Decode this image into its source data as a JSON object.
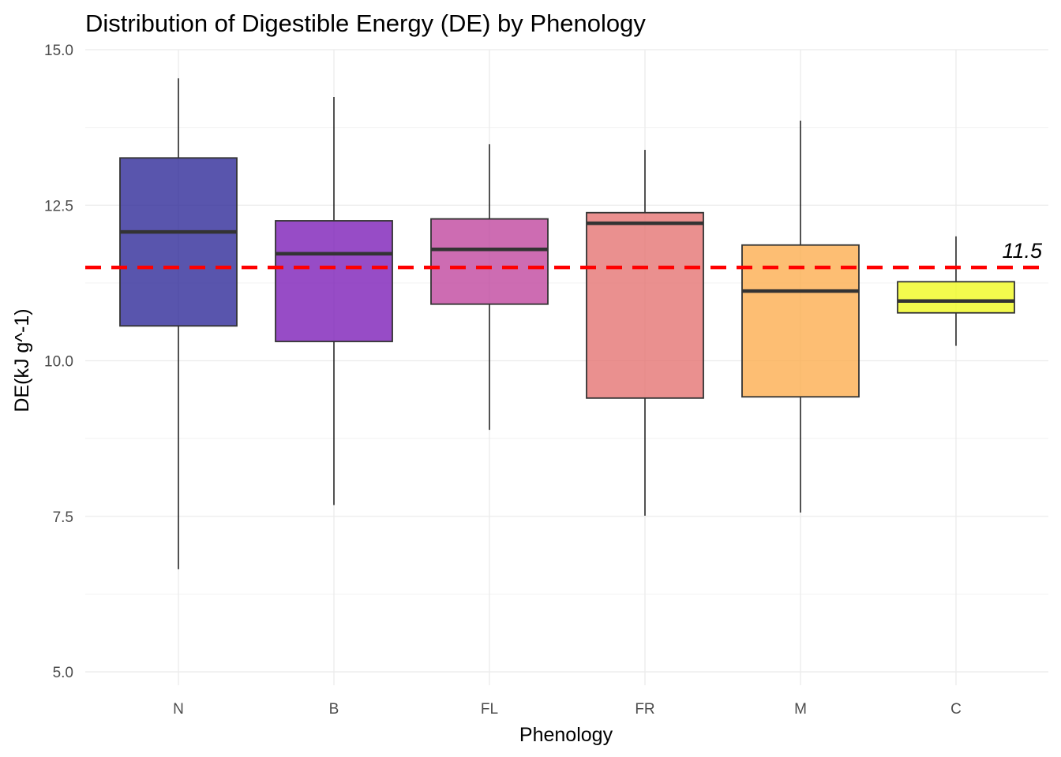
{
  "chart_data": {
    "type": "boxplot",
    "title": "Distribution of Digestible Energy (DE) by Phenology",
    "xlabel": "Phenology",
    "ylabel": "DE(kJ g^-1)",
    "ylim": [
      4.85,
      15.0
    ],
    "yticks": [
      "5.0",
      "7.5",
      "10.0",
      "12.5",
      "15.0"
    ],
    "grid": true,
    "legend": "none",
    "categories": [
      "N",
      "B",
      "FL",
      "FR",
      "M",
      "C"
    ],
    "boxes": [
      {
        "category": "N",
        "min": 6.65,
        "q1": 10.56,
        "median": 12.07,
        "q3": 13.26,
        "max": 14.54,
        "color": "#2f2a99"
      },
      {
        "category": "B",
        "min": 7.68,
        "q1": 10.31,
        "median": 11.72,
        "q3": 12.25,
        "max": 14.24,
        "color": "#7d1fb8"
      },
      {
        "category": "FL",
        "min": 8.89,
        "q1": 10.91,
        "median": 11.79,
        "q3": 12.28,
        "max": 13.48,
        "color": "#c0479f"
      },
      {
        "category": "FR",
        "min": 7.51,
        "q1": 9.4,
        "median": 12.21,
        "q3": 12.38,
        "max": 13.39,
        "color": "#e57473"
      },
      {
        "category": "M",
        "min": 7.56,
        "q1": 9.42,
        "median": 11.12,
        "q3": 11.86,
        "max": 13.86,
        "color": "#fcae50"
      },
      {
        "category": "C",
        "min": 10.24,
        "q1": 10.77,
        "median": 10.96,
        "q3": 11.27,
        "max": 12.0,
        "color": "#f0f921"
      }
    ],
    "reference_line": {
      "y": 11.5,
      "label": "11.5",
      "color": "#ff0000",
      "style": "dashed"
    }
  }
}
